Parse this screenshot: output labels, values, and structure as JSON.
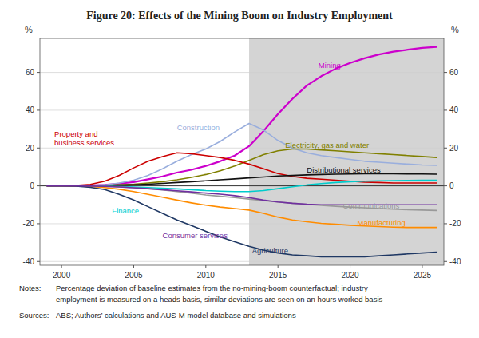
{
  "chart_data": {
    "type": "line",
    "title": "Figure 20: Effects of the Mining Boom on Industry Employment",
    "ylabel": "%",
    "y2label": "%",
    "xlim": [
      1998.5,
      2026.5
    ],
    "xticks": [
      2000,
      2005,
      2010,
      2015,
      2020,
      2025
    ],
    "ylim": [
      -42,
      78
    ],
    "yticks": [
      -40,
      -20,
      0,
      20,
      40,
      60
    ],
    "y2lim": [
      -42,
      78
    ],
    "y2ticks": [
      -40,
      -20,
      0,
      20,
      40,
      60
    ],
    "grid": true,
    "shaded_region": {
      "x0": 2013,
      "x1": 2026.5,
      "color": "#d4d4d4"
    },
    "x": [
      1999,
      2000,
      2001,
      2002,
      2003,
      2004,
      2005,
      2006,
      2007,
      2008,
      2009,
      2010,
      2011,
      2012,
      2013,
      2014,
      2015,
      2016,
      2017,
      2018,
      2019,
      2020,
      2021,
      2022,
      2023,
      2024,
      2025,
      2026
    ],
    "series": [
      {
        "color": "#cc00cc",
        "values": [
          0,
          0,
          0,
          0.2,
          0.5,
          1.2,
          2.0,
          3.5,
          5.0,
          7.0,
          8.5,
          10.5,
          13.0,
          16.0,
          21.0,
          29.0,
          38.0,
          46.0,
          53.0,
          58.0,
          62.0,
          65.0,
          67.5,
          69.5,
          71.0,
          72.0,
          73.0,
          73.5
        ]
      },
      {
        "color": "#99aedd",
        "values": [
          0,
          0,
          0,
          0.2,
          0.5,
          1.5,
          3.0,
          5.5,
          9.0,
          13.0,
          16.5,
          19.5,
          23.5,
          28.5,
          33.0,
          29.5,
          24.0,
          20.0,
          17.5,
          16.0,
          15.0,
          14.0,
          13.0,
          12.5,
          12.0,
          11.5,
          11.0,
          10.8
        ]
      },
      {
        "color": "#808000",
        "values": [
          0,
          0,
          0,
          0.1,
          0.2,
          0.5,
          0.9,
          1.5,
          2.2,
          3.2,
          4.5,
          6.0,
          8.0,
          10.5,
          13.5,
          16.5,
          18.5,
          19.5,
          19.5,
          19.0,
          18.5,
          18.0,
          17.5,
          17.0,
          16.5,
          16.0,
          15.5,
          15.0
        ]
      },
      {
        "color": "#cc0000",
        "values": [
          0,
          0,
          0.2,
          0.8,
          2.5,
          5.5,
          9.5,
          13.0,
          15.5,
          17.5,
          17.0,
          16.0,
          15.0,
          13.5,
          11.5,
          9.0,
          6.5,
          5.0,
          4.0,
          3.5,
          3.0,
          2.5,
          2.0,
          1.8,
          1.5,
          1.5,
          1.5,
          1.5
        ]
      },
      {
        "color": "#111111",
        "values": [
          0,
          0,
          0,
          0.1,
          0.2,
          0.4,
          0.6,
          0.9,
          1.3,
          1.8,
          2.2,
          2.7,
          3.2,
          3.7,
          4.2,
          4.7,
          5.2,
          5.5,
          5.8,
          6.0,
          6.2,
          6.3,
          6.4,
          6.4,
          6.4,
          6.3,
          6.3,
          6.2
        ]
      },
      {
        "color": "#00cccc",
        "values": [
          0,
          0,
          0,
          -0.1,
          -0.2,
          -0.4,
          -0.6,
          -0.9,
          -1.2,
          -1.6,
          -2.0,
          -2.5,
          -2.8,
          -3.0,
          -3.0,
          -2.5,
          -1.5,
          -0.5,
          0.5,
          1.2,
          1.8,
          2.2,
          2.5,
          2.7,
          2.8,
          2.9,
          3.0,
          3.0
        ]
      },
      {
        "color": "#999999",
        "values": [
          0,
          0,
          0,
          -0.1,
          -0.3,
          -0.6,
          -1.0,
          -1.5,
          -2.2,
          -3.0,
          -3.8,
          -4.8,
          -5.5,
          -6.2,
          -7.0,
          -7.8,
          -8.5,
          -9.2,
          -9.8,
          -10.3,
          -10.8,
          -11.2,
          -11.6,
          -12.0,
          -12.3,
          -12.6,
          -12.8,
          -13.0
        ]
      },
      {
        "color": "#ff8c00",
        "values": [
          0,
          0,
          -0.1,
          -0.4,
          -0.9,
          -1.8,
          -3.0,
          -4.5,
          -6.0,
          -7.5,
          -9.0,
          -10.2,
          -11.2,
          -12.0,
          -12.8,
          -14.5,
          -16.5,
          -18.0,
          -19.0,
          -19.8,
          -20.3,
          -20.8,
          -21.2,
          -21.5,
          -21.8,
          -22.0,
          -22.0,
          -22.0
        ]
      },
      {
        "color": "#1f3864",
        "values": [
          0,
          0,
          -0.2,
          -0.8,
          -2.0,
          -4.5,
          -7.5,
          -11.0,
          -14.5,
          -18.0,
          -21.0,
          -24.0,
          -27.0,
          -29.5,
          -32.0,
          -34.0,
          -35.5,
          -36.5,
          -37.0,
          -37.5,
          -37.5,
          -37.5,
          -37.5,
          -37.0,
          -36.5,
          -36.0,
          -35.5,
          -35.0
        ]
      },
      {
        "color": "#7030a0",
        "values": [
          0,
          0,
          0,
          -0.1,
          -0.3,
          -0.6,
          -1.0,
          -1.5,
          -2.0,
          -2.6,
          -3.2,
          -3.8,
          -4.4,
          -5.2,
          -6.2,
          -7.5,
          -8.5,
          -9.2,
          -9.7,
          -10.0,
          -10.0,
          -10.0,
          -10.0,
          -10.0,
          -10.0,
          -10.0,
          -10.0,
          -10.0
        ]
      }
    ],
    "annotations": [
      {
        "text": "Mining",
        "x": 2017.8,
        "y": 64,
        "color": "#cc00cc"
      },
      {
        "text": "Construction",
        "x": 2008.0,
        "y": 31,
        "color": "#99aedd"
      },
      {
        "text": "Electricity, gas and water",
        "x": 2015.5,
        "y": 21.5,
        "color": "#808000"
      },
      {
        "text": "Property and\nbusiness services",
        "x": 1999.5,
        "y": 25,
        "color": "#cc0000"
      },
      {
        "text": "Distributional services",
        "x": 2017.0,
        "y": 8.5,
        "color": "#111111"
      },
      {
        "text": "Finance",
        "x": 2003.5,
        "y": -13,
        "color": "#00cccc"
      },
      {
        "text": "Communications",
        "x": 2019.5,
        "y": -10.5,
        "color": "#999999"
      },
      {
        "text": "Manufacturing",
        "x": 2020.5,
        "y": -19.5,
        "color": "#ff8c00"
      },
      {
        "text": "Agriculture",
        "x": 2013.2,
        "y": -34,
        "color": "#1f3864"
      },
      {
        "text": "Consumer services",
        "x": 2007.0,
        "y": -26,
        "color": "#7030a0"
      }
    ],
    "notes_label": "Notes:",
    "notes": [
      "Percentage deviation of baseline estimates from the no-mining-boom counterfactual; industry",
      "employment is measured on a heads basis, similar deviations are seen on an hours worked basis"
    ],
    "sources_label": "Sources:",
    "sources": "ABS; Authors’ calculations and AUS-M model database and simulations"
  }
}
